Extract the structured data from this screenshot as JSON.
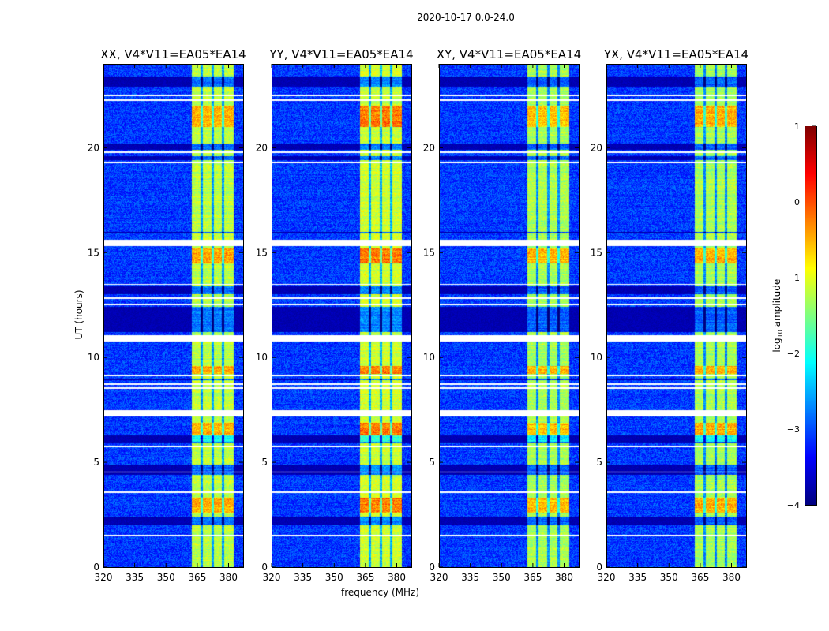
{
  "figure_title": "2020-10-17 0.0-24.0",
  "chart_data": {
    "type": "heatmap",
    "title": "2020-10-17 0.0-24.0",
    "xlabel": "frequency (MHz)",
    "ylabel": "UT (hours)",
    "xlim": [
      320,
      387
    ],
    "ylim": [
      0,
      24
    ],
    "xticks": [
      320,
      335,
      350,
      365,
      380
    ],
    "yticks": [
      0,
      5,
      10,
      15,
      20
    ],
    "colormap": "jet",
    "colorbar": {
      "label_parts": [
        "log",
        "10",
        " amplitude"
      ],
      "range": [
        -4,
        1
      ],
      "ticks": [
        -4,
        -3,
        -2,
        -1,
        0,
        1
      ],
      "tick_labels": [
        "−4",
        "−3",
        "−2",
        "−1",
        "0",
        "1"
      ]
    },
    "panels": [
      {
        "title": "XX, V4*V11=EA05*EA14",
        "band_level": -1.2,
        "hot_boost": 0.9
      },
      {
        "title": "YY, V4*V11=EA05*EA14",
        "band_level": -1.1,
        "hot_boost": 1.1
      },
      {
        "title": "XY, V4*V11=EA05*EA14",
        "band_level": -1.3,
        "hot_boost": 0.9
      },
      {
        "title": "YX, V4*V11=EA05*EA14",
        "band_level": -1.3,
        "hot_boost": 1.0
      }
    ],
    "background_level": -3.1,
    "band_mhz": [
      362.5,
      382.5
    ],
    "band_gaps_mhz": [
      367.2,
      372.4,
      377.4
    ],
    "flagged_hours_white": [
      [
        22.45,
        22.55
      ],
      [
        22.25,
        22.32
      ],
      [
        19.76,
        19.84
      ],
      [
        19.25,
        19.33
      ],
      [
        15.3,
        15.6
      ],
      [
        13.45,
        13.52
      ],
      [
        12.8,
        12.87
      ],
      [
        12.5,
        12.56
      ],
      [
        10.75,
        11.05
      ],
      [
        9.1,
        9.16
      ],
      [
        8.7,
        8.76
      ],
      [
        8.5,
        8.56
      ],
      [
        7.2,
        7.5
      ],
      [
        5.7,
        5.78
      ],
      [
        4.5,
        4.56
      ],
      [
        3.55,
        3.6
      ],
      [
        1.45,
        1.55
      ]
    ],
    "low_hours_dark": [
      [
        22.9,
        23.4
      ],
      [
        19.9,
        20.2
      ],
      [
        19.4,
        19.6
      ],
      [
        15.9,
        16.0
      ],
      [
        13.0,
        13.4
      ],
      [
        11.2,
        12.4
      ],
      [
        8.9,
        9.0
      ],
      [
        5.9,
        6.3
      ],
      [
        4.4,
        4.9
      ],
      [
        2.0,
        2.4
      ]
    ],
    "hot_hours": [
      [
        6.0,
        6.9
      ],
      [
        14.5,
        15.2
      ],
      [
        9.2,
        9.6
      ],
      [
        21.0,
        22.0
      ],
      [
        2.6,
        3.3
      ]
    ]
  }
}
